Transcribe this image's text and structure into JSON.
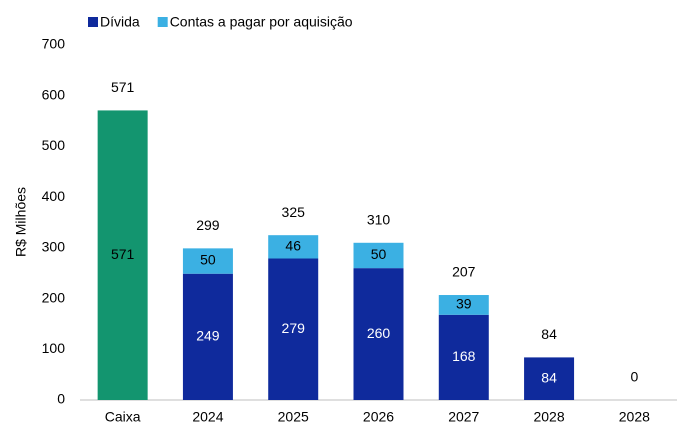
{
  "chart_data": {
    "type": "stacked_bar",
    "y_label": "R$ Milhões",
    "categories": [
      "Caixa",
      "2024",
      "2025",
      "2026",
      "2027",
      "2028",
      "2028"
    ],
    "series": [
      {
        "name": "Dívida",
        "color": "#0f2a9c",
        "point_colors": [
          "#13956f",
          null,
          null,
          null,
          null,
          null,
          null
        ],
        "values": [
          571,
          249,
          279,
          260,
          168,
          84,
          0
        ]
      },
      {
        "name": "Contas a pagar por aquisição",
        "color": "#3bb0e3",
        "values": [
          null,
          50,
          46,
          50,
          39,
          null,
          null
        ]
      }
    ],
    "totals": [
      571,
      299,
      325,
      310,
      207,
      84,
      0
    ],
    "ylim": [
      0,
      700
    ],
    "yticks": [
      0,
      100,
      200,
      300,
      400,
      500,
      600,
      700
    ],
    "grid": false,
    "legend": "top"
  }
}
